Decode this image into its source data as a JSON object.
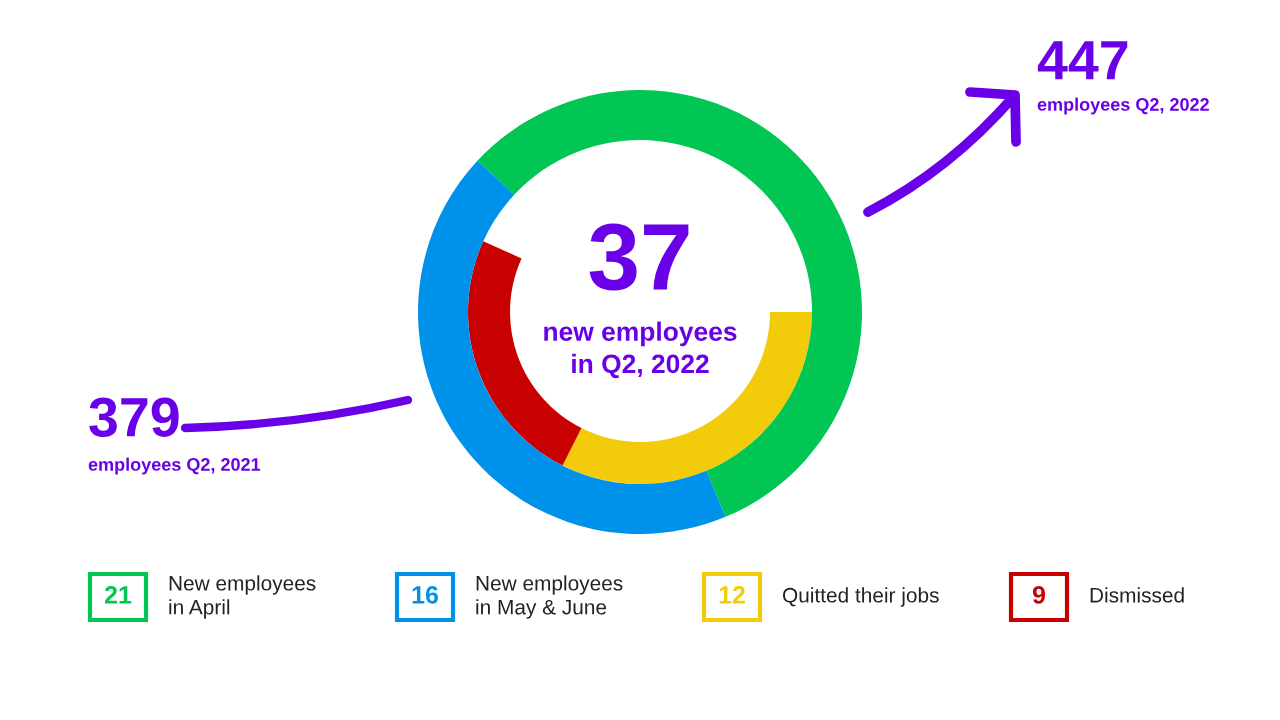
{
  "chart_data": {
    "type": "donut",
    "title": "37",
    "subtitle": "new employees\nin Q2, 2022",
    "categories": [
      "New employees\nin April",
      "New employees\nin May & June",
      "Quitted their jobs",
      "Dismissed"
    ],
    "series": [
      {
        "values": [
          null,
          null,
          12,
          9
        ]
      },
      {
        "values": [
          21,
          16,
          null,
          null
        ]
      }
    ],
    "colors": [
      "#02c653",
      "#0091ea",
      "#f2cc0a",
      "#c80000"
    ],
    "data_labels": true,
    "legend": "bottom",
    "annotations": [
      "379",
      "employees Q2, 2021",
      "447",
      "employees Q2, 2022"
    ]
  }
}
